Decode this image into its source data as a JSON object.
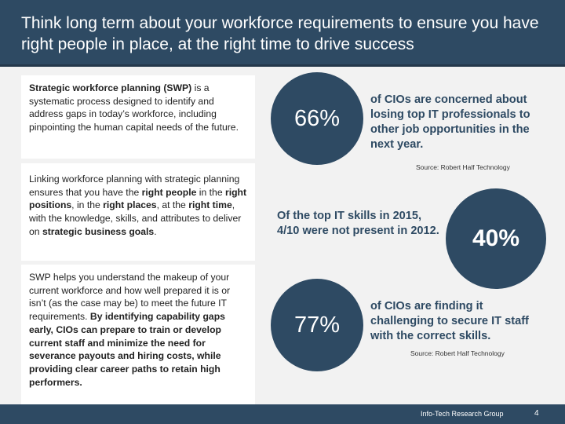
{
  "header": {
    "title": "Think long term about your workforce requirements to ensure you have right people in place, at the right time to drive success"
  },
  "panels": {
    "p1": [
      {
        "t": "Strategic workforce planning (SWP)",
        "b": true
      },
      {
        "t": " is a systematic process designed to identify and address gaps in today’s workforce, including pinpointing the human capital needs of the future.",
        "b": false
      }
    ],
    "p2": [
      {
        "t": "Linking workforce planning with strategic planning ensures that you have the ",
        "b": false
      },
      {
        "t": "right people",
        "b": true
      },
      {
        "t": " in the ",
        "b": false
      },
      {
        "t": "right positions",
        "b": true
      },
      {
        "t": ", in the ",
        "b": false
      },
      {
        "t": "right places",
        "b": true
      },
      {
        "t": ", at the ",
        "b": false
      },
      {
        "t": "right time",
        "b": true
      },
      {
        "t": ", with the knowledge, skills, and attributes to deliver on ",
        "b": false
      },
      {
        "t": "strategic business goals",
        "b": true
      },
      {
        "t": ".",
        "b": false
      }
    ],
    "p3": [
      {
        "t": "SWP helps you understand the makeup of your current workforce and how well prepared it is or isn’t (as the case may be) to meet the future IT requirements. ",
        "b": false
      },
      {
        "t": "By identifying capability gaps early, CIOs can prepare to train or develop current staff and minimize the need for severance payouts and hiring costs, while providing clear career paths to retain high performers.",
        "b": true
      }
    ]
  },
  "stats": {
    "s1": {
      "value": "66%",
      "text": "of CIOs are concerned about losing top IT professionals to other job opportunities in the next year.",
      "source": "Source: Robert Half Technology"
    },
    "s2": {
      "value": "40%",
      "text": "Of the top IT skills in 2015, 4/10 were not present in 2012."
    },
    "s3": {
      "value": "77%",
      "text": "of CIOs are finding it challenging to secure IT staff with the correct skills.",
      "source": "Source: Robert Half Technology"
    }
  },
  "footer": {
    "org": "Info-Tech Research Group",
    "page": "4"
  },
  "colors": {
    "accent": "#2e4a63",
    "background": "#f2f2f2"
  }
}
